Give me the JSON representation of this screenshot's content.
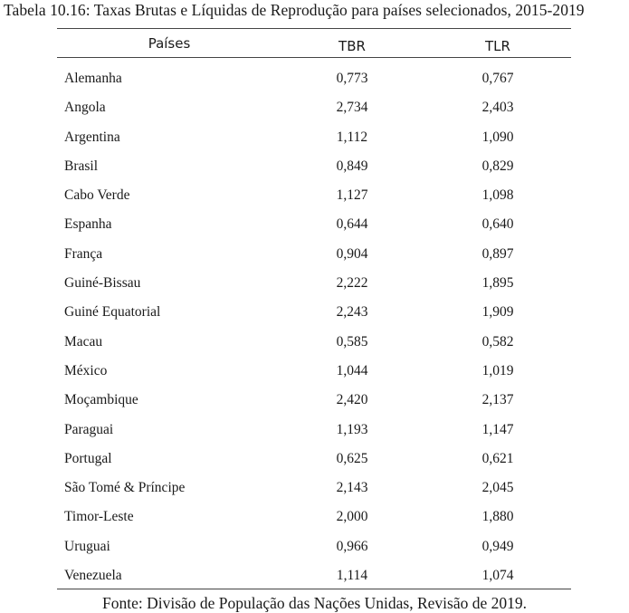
{
  "caption": "Tabela 10.16: Taxas Brutas e Líquidas de Reprodução para países selecionados, 2015-2019",
  "table": {
    "headers": {
      "country": "Países",
      "tbr": "TBR",
      "tlr": "TLR"
    },
    "rows": [
      {
        "country": "Alemanha",
        "tbr": "0,773",
        "tlr": "0,767"
      },
      {
        "country": "Angola",
        "tbr": "2,734",
        "tlr": "2,403"
      },
      {
        "country": "Argentina",
        "tbr": "1,112",
        "tlr": "1,090"
      },
      {
        "country": "Brasil",
        "tbr": "0,849",
        "tlr": "0,829"
      },
      {
        "country": "Cabo Verde",
        "tbr": "1,127",
        "tlr": "1,098"
      },
      {
        "country": "Espanha",
        "tbr": "0,644",
        "tlr": "0,640"
      },
      {
        "country": "França",
        "tbr": "0,904",
        "tlr": "0,897"
      },
      {
        "country": "Guiné-Bissau",
        "tbr": "2,222",
        "tlr": "1,895"
      },
      {
        "country": "Guiné Equatorial",
        "tbr": "2,243",
        "tlr": "1,909"
      },
      {
        "country": "Macau",
        "tbr": "0,585",
        "tlr": "0,582"
      },
      {
        "country": "México",
        "tbr": "1,044",
        "tlr": "1,019"
      },
      {
        "country": "Moçambique",
        "tbr": "2,420",
        "tlr": "2,137"
      },
      {
        "country": "Paraguai",
        "tbr": "1,193",
        "tlr": "1,147"
      },
      {
        "country": "Portugal",
        "tbr": "0,625",
        "tlr": "0,621"
      },
      {
        "country": "São Tomé & Príncipe",
        "tbr": "2,143",
        "tlr": "2,045"
      },
      {
        "country": "Timor-Leste",
        "tbr": "2,000",
        "tlr": "1,880"
      },
      {
        "country": "Uruguai",
        "tbr": "0,966",
        "tlr": "0,949"
      },
      {
        "country": "Venezuela",
        "tbr": "1,114",
        "tlr": "1,074"
      }
    ]
  },
  "source": "Fonte: Divisão de População das Nações Unidas, Revisão de 2019."
}
